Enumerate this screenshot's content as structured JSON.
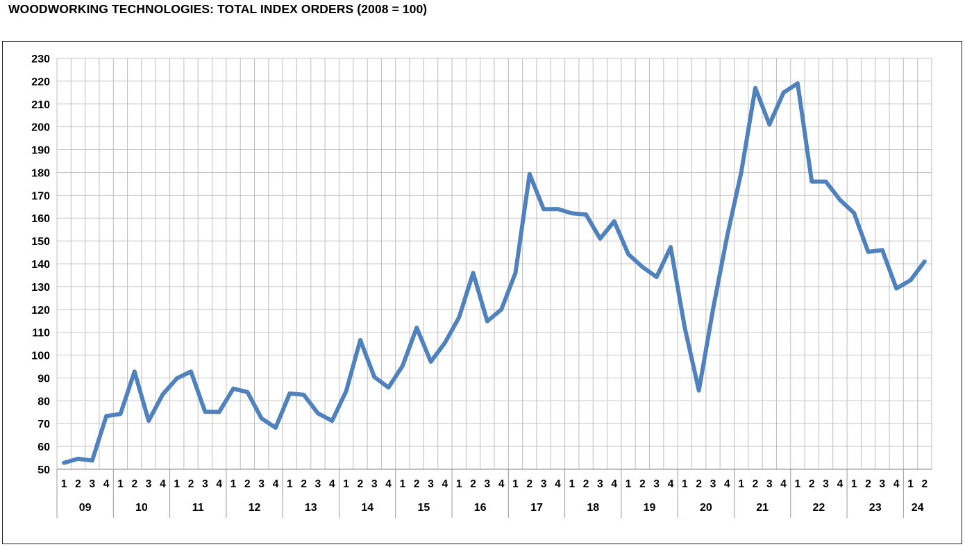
{
  "chart_data": {
    "type": "line",
    "title": "WOODWORKING TECHNOLOGIES: TOTAL INDEX ORDERS (2008 = 100)",
    "xlabel": "",
    "ylabel": "",
    "ylim": [
      50,
      230
    ],
    "yticks": [
      50,
      60,
      70,
      80,
      90,
      100,
      110,
      120,
      130,
      140,
      150,
      160,
      170,
      180,
      190,
      200,
      210,
      220,
      230
    ],
    "grid": true,
    "line_color": "#4f81bd",
    "years": [
      {
        "label": "09",
        "quarters": [
          "1",
          "2",
          "3",
          "4"
        ]
      },
      {
        "label": "10",
        "quarters": [
          "1",
          "2",
          "3",
          "4"
        ]
      },
      {
        "label": "11",
        "quarters": [
          "1",
          "2",
          "3",
          "4"
        ]
      },
      {
        "label": "12",
        "quarters": [
          "1",
          "2",
          "3",
          "4"
        ]
      },
      {
        "label": "13",
        "quarters": [
          "1",
          "2",
          "3",
          "4"
        ]
      },
      {
        "label": "14",
        "quarters": [
          "1",
          "2",
          "3",
          "4"
        ]
      },
      {
        "label": "15",
        "quarters": [
          "1",
          "2",
          "3",
          "4"
        ]
      },
      {
        "label": "16",
        "quarters": [
          "1",
          "2",
          "3",
          "4"
        ]
      },
      {
        "label": "17",
        "quarters": [
          "1",
          "2",
          "3",
          "4"
        ]
      },
      {
        "label": "18",
        "quarters": [
          "1",
          "2",
          "3",
          "4"
        ]
      },
      {
        "label": "19",
        "quarters": [
          "1",
          "2",
          "3",
          "4"
        ]
      },
      {
        "label": "20",
        "quarters": [
          "1",
          "2",
          "3",
          "4"
        ]
      },
      {
        "label": "21",
        "quarters": [
          "1",
          "2",
          "3",
          "4"
        ]
      },
      {
        "label": "22",
        "quarters": [
          "1",
          "2",
          "3",
          "4"
        ]
      },
      {
        "label": "23",
        "quarters": [
          "1",
          "2",
          "3",
          "4"
        ]
      },
      {
        "label": "24",
        "quarters": [
          "1",
          "2"
        ]
      }
    ],
    "values": [
      52.8,
      54.6,
      53.8,
      73.3,
      74.2,
      92.8,
      71.2,
      82.8,
      89.8,
      92.8,
      75.2,
      75.1,
      85.3,
      83.8,
      72.3,
      68.2,
      83.2,
      82.6,
      74.5,
      71.2,
      84.2,
      106.6,
      90.4,
      85.8,
      95.3,
      112.0,
      97.1,
      105.4,
      116.5,
      136.0,
      114.8,
      120.0,
      136.0,
      179.3,
      163.9,
      164.0,
      162.1,
      161.6,
      151.0,
      158.6,
      144.2,
      138.6,
      134.2,
      147.3,
      112.0,
      84.5,
      120.0,
      152.0,
      180.0,
      217.0,
      201.0,
      215.0,
      219.0,
      176.0,
      176.0,
      168.0,
      162.2,
      145.2,
      146.0,
      129.2,
      132.8,
      141.0
    ]
  }
}
